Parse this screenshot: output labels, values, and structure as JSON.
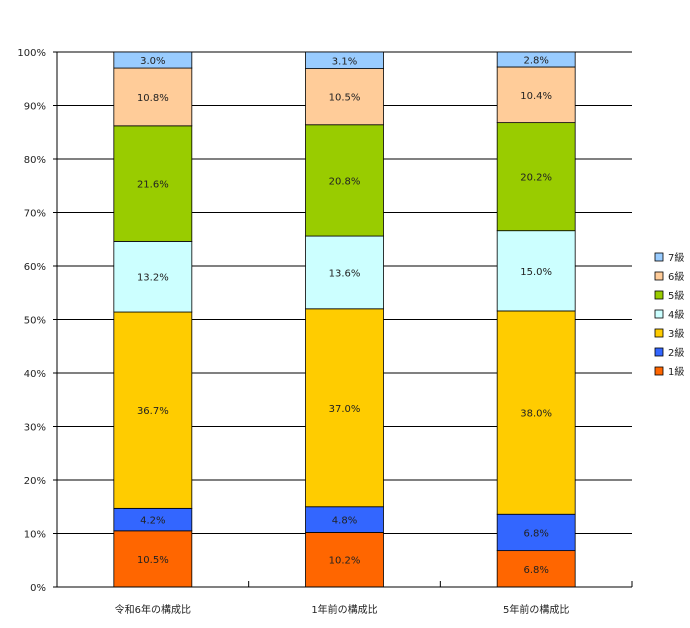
{
  "chart_data": {
    "type": "bar",
    "stacked": true,
    "categories": [
      "令和6年の構成比",
      "1年前の構成比",
      "5年前の構成比"
    ],
    "series": [
      {
        "name": "1級",
        "color": "#FF6600",
        "values": [
          10.5,
          10.2,
          6.8
        ]
      },
      {
        "name": "2級",
        "color": "#3366FF",
        "values": [
          4.2,
          4.8,
          6.8
        ]
      },
      {
        "name": "3級",
        "color": "#FFCC00",
        "values": [
          36.7,
          37.0,
          38.0
        ]
      },
      {
        "name": "4級",
        "color": "#CCFFFF",
        "values": [
          13.2,
          13.6,
          15.0
        ]
      },
      {
        "name": "5級",
        "color": "#99CC00",
        "values": [
          21.6,
          20.8,
          20.2
        ]
      },
      {
        "name": "6級",
        "color": "#FFCC99",
        "values": [
          10.8,
          10.5,
          10.4
        ]
      },
      {
        "name": "7級",
        "color": "#99CCFF",
        "values": [
          3.0,
          3.1,
          2.8
        ]
      }
    ],
    "data_labels": [
      [
        "10.5%",
        "10.2%",
        "6.8%"
      ],
      [
        "4.2%",
        "4.8%",
        "6.8%"
      ],
      [
        "36.7%",
        "37.0%",
        "38.0%"
      ],
      [
        "13.2%",
        "13.6%",
        "15.0%"
      ],
      [
        "21.6%",
        "20.8%",
        "20.2%"
      ],
      [
        "10.8%",
        "10.5%",
        "10.4%"
      ],
      [
        "3.0%",
        "3.1%",
        "2.8%"
      ]
    ],
    "y_ticks": [
      "0%",
      "10%",
      "20%",
      "30%",
      "40%",
      "50%",
      "60%",
      "70%",
      "80%",
      "90%",
      "100%"
    ],
    "ylim": [
      0,
      100
    ],
    "grid": true,
    "legend_position": "right"
  }
}
